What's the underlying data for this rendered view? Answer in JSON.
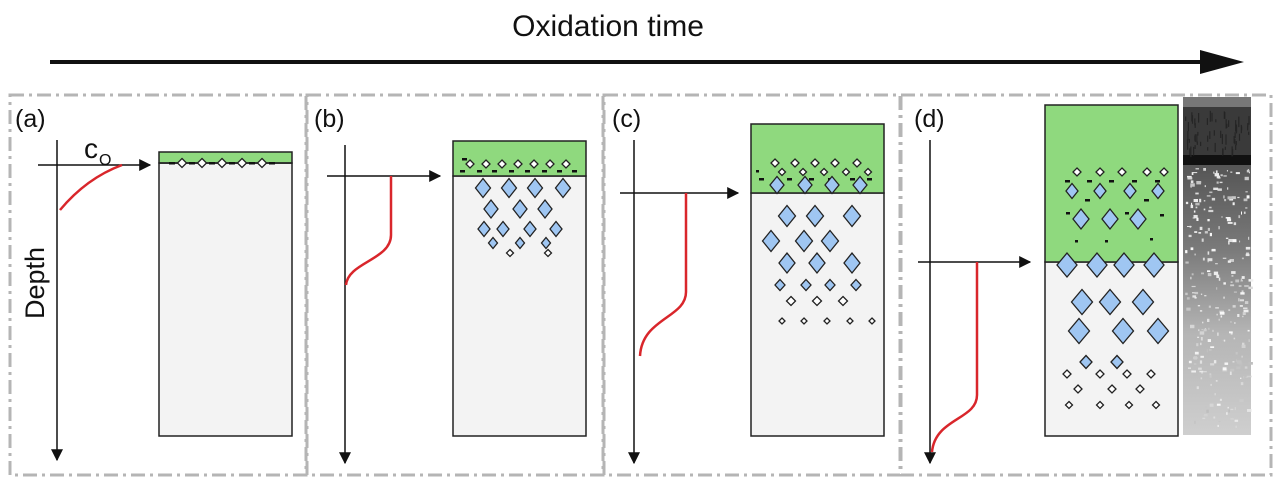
{
  "title": "Oxidation time",
  "depth_label": "Depth",
  "concentration_label": "c",
  "concentration_subscript": "O",
  "colors": {
    "oxide": "#8fd97e",
    "metal": "#f3f3f3",
    "precipitate": "#9fc6f2",
    "profile": "#d9262b",
    "panel_border": "#b5b5b5"
  },
  "panels": [
    {
      "label": "(a)",
      "stage": 1
    },
    {
      "label": "(b)",
      "stage": 2
    },
    {
      "label": "(c)",
      "stage": 3
    },
    {
      "label": "(d)",
      "stage": 4
    }
  ]
}
